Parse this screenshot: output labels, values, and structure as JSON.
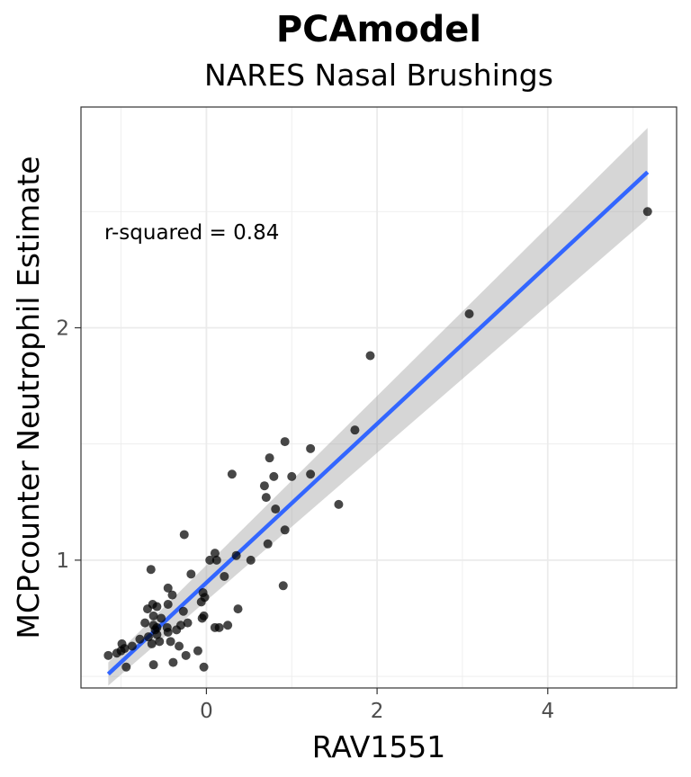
{
  "chart_data": {
    "type": "scatter",
    "title": "PCAmodel",
    "subtitle": "NARES Nasal Brushings",
    "xlabel": "RAV1551",
    "ylabel": "MCPcounter Neutrophil Estimate",
    "xlim": [
      -1.47,
      5.51
    ],
    "ylim": [
      0.45,
      2.95
    ],
    "x_ticks": [
      0,
      2,
      4
    ],
    "x_tick_labels": [
      "0",
      "2",
      "4"
    ],
    "y_ticks": [
      1,
      2
    ],
    "y_tick_labels": [
      "1",
      "2"
    ],
    "grid": true,
    "annotation": "r-squared = 0.84",
    "fit_line": {
      "x": [
        -1.15,
        5.17
      ],
      "y": [
        0.51,
        2.67
      ],
      "ci_lower": [
        0.46,
        2.47
      ],
      "ci_upper": [
        0.56,
        2.86
      ],
      "color": "#3366ff",
      "band_color": "#999999"
    },
    "points": {
      "color": "#000000",
      "x": [
        5.17,
        3.08,
        1.92,
        1.74,
        0.92,
        0.74,
        1.22,
        0.3,
        0.79,
        0.68,
        1.0,
        1.22,
        0.7,
        1.55,
        0.81,
        0.92,
        0.72,
        0.52,
        0.35,
        0.1,
        0.04,
        0.12,
        0.21,
        0.37,
        0.9,
        -0.26,
        -0.65,
        -0.18,
        -0.45,
        -0.63,
        -0.04,
        -0.06,
        -0.02,
        -0.4,
        -0.58,
        -0.69,
        -0.45,
        -0.27,
        -0.62,
        -0.53,
        -0.72,
        -0.62,
        -0.58,
        -0.46,
        -0.3,
        -0.22,
        -0.05,
        -0.03,
        0.1,
        0.15,
        0.25,
        -0.35,
        -0.45,
        -0.6,
        -0.68,
        -0.78,
        -0.87,
        -0.96,
        -1.05,
        -1.15,
        -1.0,
        -0.99,
        -0.94,
        -0.62,
        -0.39,
        -0.32,
        -0.24,
        -0.58,
        -0.64,
        -0.55,
        -0.42,
        -0.1,
        -0.03
      ],
      "y": [
        2.5,
        2.06,
        1.88,
        1.56,
        1.51,
        1.44,
        1.48,
        1.37,
        1.36,
        1.32,
        1.36,
        1.37,
        1.27,
        1.24,
        1.22,
        1.13,
        1.07,
        1.0,
        1.02,
        1.03,
        1.0,
        1.0,
        0.93,
        0.79,
        0.89,
        1.11,
        0.96,
        0.94,
        0.88,
        0.81,
        0.86,
        0.82,
        0.84,
        0.85,
        0.8,
        0.79,
        0.81,
        0.78,
        0.76,
        0.75,
        0.73,
        0.72,
        0.71,
        0.71,
        0.72,
        0.73,
        0.75,
        0.76,
        0.71,
        0.71,
        0.72,
        0.7,
        0.69,
        0.7,
        0.67,
        0.66,
        0.63,
        0.62,
        0.6,
        0.59,
        0.61,
        0.64,
        0.54,
        0.55,
        0.56,
        0.63,
        0.59,
        0.68,
        0.64,
        0.65,
        0.65,
        0.61,
        0.54
      ]
    }
  }
}
